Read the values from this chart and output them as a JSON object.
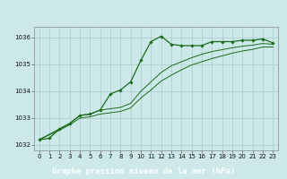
{
  "title": "Graphe pression niveau de la mer (hPa)",
  "xlim": [
    -0.5,
    23.5
  ],
  "ylim": [
    1031.8,
    1036.4
  ],
  "yticks": [
    1032,
    1033,
    1034,
    1035,
    1036
  ],
  "xticks": [
    0,
    1,
    2,
    3,
    4,
    5,
    6,
    7,
    8,
    9,
    10,
    11,
    12,
    13,
    14,
    15,
    16,
    17,
    18,
    19,
    20,
    21,
    22,
    23
  ],
  "xtick_labels": [
    "0",
    "1",
    "2",
    "3",
    "4",
    "5",
    "6",
    "7",
    "8",
    "9",
    "10",
    "11",
    "12",
    "13",
    "14",
    "15",
    "16",
    "17",
    "18",
    "19",
    "20",
    "21",
    "22",
    "23"
  ],
  "background_color": "#cce8e8",
  "grid_color": "#aacccc",
  "line_color_thin": "#1a6b1a",
  "line_color_main": "#1a6b1a",
  "label_bg": "#2d7a2d",
  "label_fg": "#ffffff",
  "curve_main": [
    [
      0,
      1032.2
    ],
    [
      1,
      1032.25
    ],
    [
      2,
      1032.6
    ],
    [
      3,
      1032.8
    ],
    [
      4,
      1033.1
    ],
    [
      5,
      1033.15
    ],
    [
      6,
      1033.3
    ],
    [
      7,
      1033.9
    ],
    [
      8,
      1034.05
    ],
    [
      9,
      1034.35
    ],
    [
      10,
      1035.15
    ],
    [
      11,
      1035.85
    ],
    [
      12,
      1036.05
    ],
    [
      13,
      1035.75
    ],
    [
      14,
      1035.7
    ],
    [
      15,
      1035.7
    ],
    [
      16,
      1035.7
    ],
    [
      17,
      1035.85
    ],
    [
      18,
      1035.85
    ],
    [
      19,
      1035.85
    ],
    [
      20,
      1035.9
    ],
    [
      21,
      1035.9
    ],
    [
      22,
      1035.95
    ],
    [
      23,
      1035.8
    ]
  ],
  "curve_line2": [
    [
      0,
      1032.2
    ],
    [
      2,
      1032.6
    ],
    [
      3,
      1032.8
    ],
    [
      4,
      1033.1
    ],
    [
      5,
      1033.15
    ],
    [
      6,
      1033.3
    ],
    [
      7,
      1033.35
    ],
    [
      8,
      1033.4
    ],
    [
      9,
      1033.55
    ],
    [
      10,
      1034.0
    ],
    [
      11,
      1034.35
    ],
    [
      12,
      1034.7
    ],
    [
      13,
      1034.95
    ],
    [
      14,
      1035.1
    ],
    [
      15,
      1035.25
    ],
    [
      16,
      1035.38
    ],
    [
      17,
      1035.48
    ],
    [
      18,
      1035.55
    ],
    [
      19,
      1035.62
    ],
    [
      20,
      1035.68
    ],
    [
      21,
      1035.72
    ],
    [
      22,
      1035.78
    ],
    [
      23,
      1035.75
    ]
  ],
  "curve_line3": [
    [
      0,
      1032.2
    ],
    [
      2,
      1032.55
    ],
    [
      3,
      1032.75
    ],
    [
      4,
      1033.0
    ],
    [
      5,
      1033.05
    ],
    [
      6,
      1033.15
    ],
    [
      7,
      1033.2
    ],
    [
      8,
      1033.25
    ],
    [
      9,
      1033.38
    ],
    [
      10,
      1033.75
    ],
    [
      11,
      1034.05
    ],
    [
      12,
      1034.38
    ],
    [
      13,
      1034.6
    ],
    [
      14,
      1034.8
    ],
    [
      15,
      1034.98
    ],
    [
      16,
      1035.1
    ],
    [
      17,
      1035.22
    ],
    [
      18,
      1035.32
    ],
    [
      19,
      1035.42
    ],
    [
      20,
      1035.5
    ],
    [
      21,
      1035.56
    ],
    [
      22,
      1035.65
    ],
    [
      23,
      1035.65
    ]
  ]
}
